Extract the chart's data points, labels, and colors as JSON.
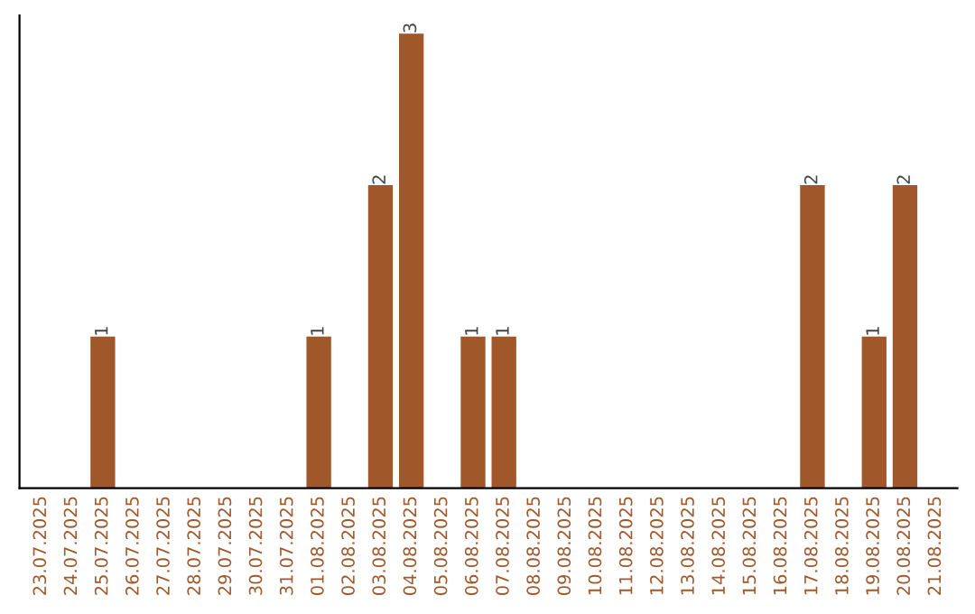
{
  "chart_data": {
    "type": "bar",
    "categories": [
      "23.07.2025",
      "24.07.2025",
      "25.07.2025",
      "26.07.2025",
      "27.07.2025",
      "28.07.2025",
      "29.07.2025",
      "30.07.2025",
      "31.07.2025",
      "01.08.2025",
      "02.08.2025",
      "03.08.2025",
      "04.08.2025",
      "05.08.2025",
      "06.08.2025",
      "07.08.2025",
      "08.08.2025",
      "09.08.2025",
      "10.08.2025",
      "11.08.2025",
      "12.08.2025",
      "13.08.2025",
      "14.08.2025",
      "15.08.2025",
      "16.08.2025",
      "17.08.2025",
      "18.08.2025",
      "19.08.2025",
      "20.08.2025",
      "21.08.2025"
    ],
    "series": [
      {
        "color": "#a0572a",
        "values": [
          0,
          0,
          1,
          0,
          0,
          0,
          0,
          0,
          0,
          1,
          0,
          2,
          3,
          0,
          1,
          1,
          0,
          0,
          0,
          0,
          0,
          0,
          0,
          0,
          0,
          2,
          0,
          1,
          2,
          0
        ],
        "value_labels": [
          null,
          null,
          "1",
          null,
          null,
          null,
          null,
          null,
          null,
          "1",
          null,
          "2",
          "3",
          null,
          "1",
          "1",
          null,
          null,
          null,
          null,
          null,
          null,
          null,
          null,
          null,
          "2",
          null,
          "1",
          "2",
          null
        ]
      }
    ],
    "tick_labels": "x",
    "grid": false,
    "legend": false
  }
}
